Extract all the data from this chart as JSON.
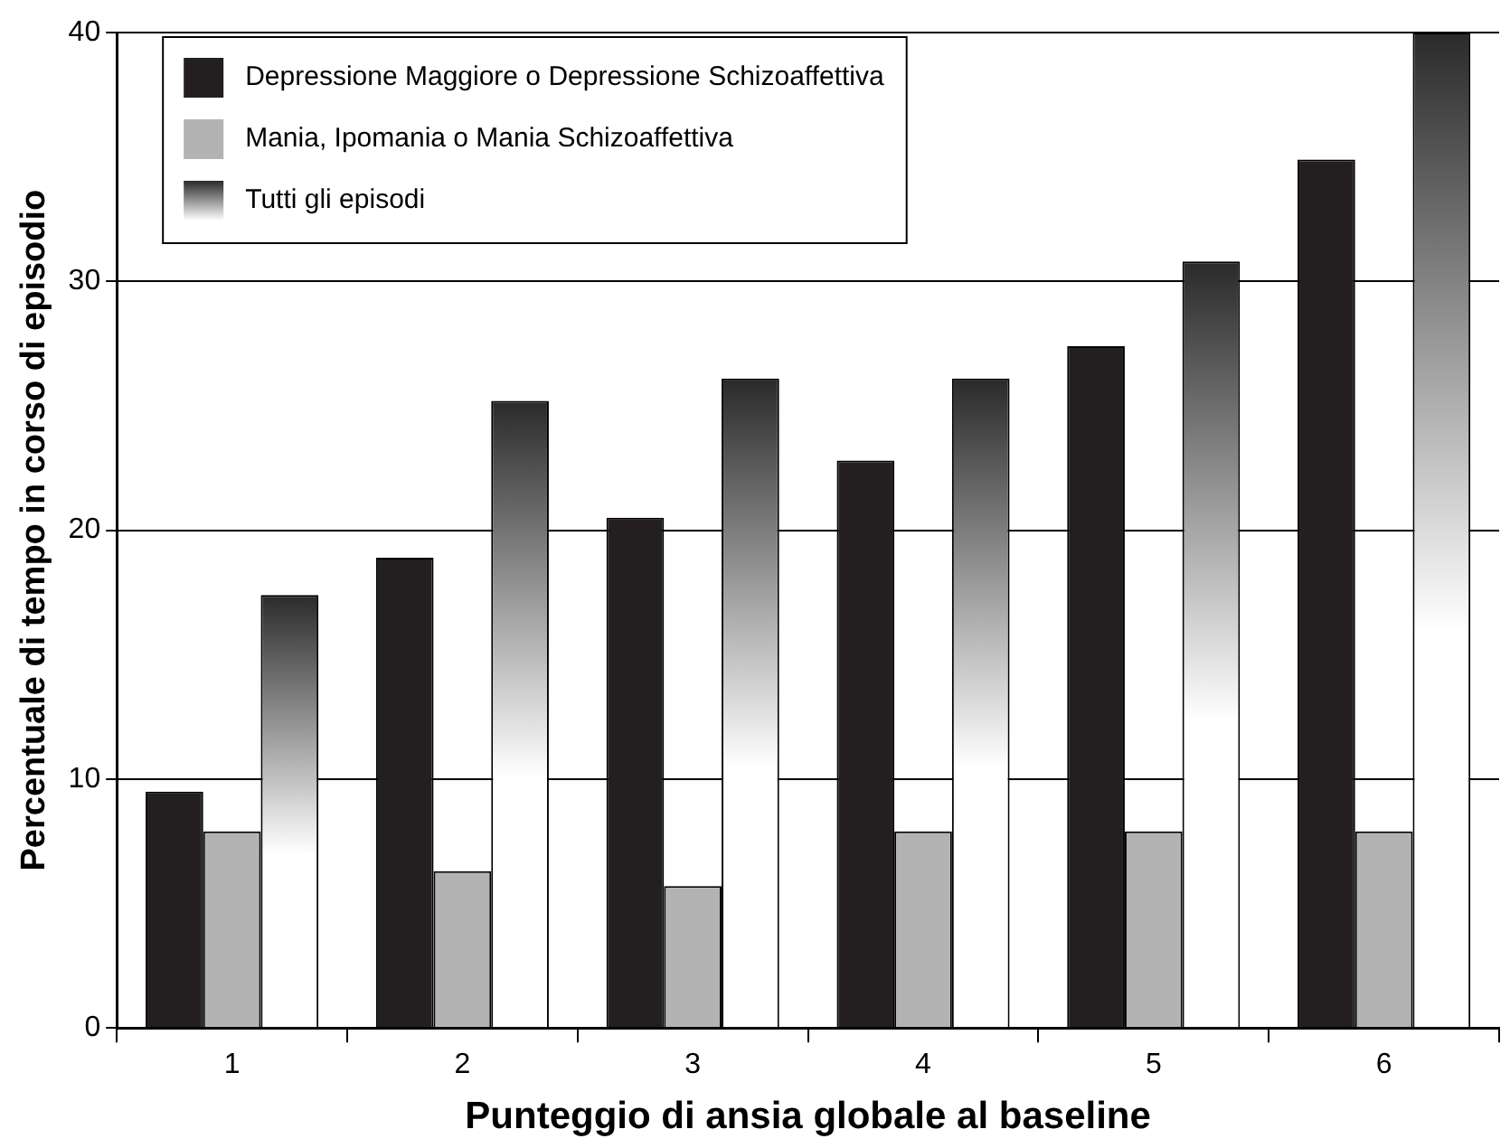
{
  "chart_data": {
    "type": "bar",
    "xlabel": "Punteggio di ansia globale al baseline",
    "ylabel": "Percentuale di tempo in corso di episodio",
    "categories": [
      "1",
      "2",
      "3",
      "4",
      "5",
      "6"
    ],
    "series": [
      {
        "name": "Depressione Maggiore o Depressione Schizoaffettiva",
        "color": "#231f20",
        "values": [
          9.5,
          18.9,
          20.5,
          22.8,
          27.4,
          34.9
        ]
      },
      {
        "name": "Mania, Ipomania o Mania Schizoaffettiva",
        "color": "#b3b3b3",
        "values": [
          7.9,
          6.3,
          5.7,
          7.9,
          7.9,
          7.9
        ]
      },
      {
        "name": "Tutti gli episodi",
        "color": "#2a2a2a",
        "values": [
          17.4,
          25.2,
          26.1,
          26.1,
          30.8,
          40
        ]
      }
    ],
    "ylim": [
      0,
      40
    ],
    "yticks": [
      0,
      10,
      20,
      30,
      40
    ],
    "grid": "y",
    "legend": "top left"
  }
}
